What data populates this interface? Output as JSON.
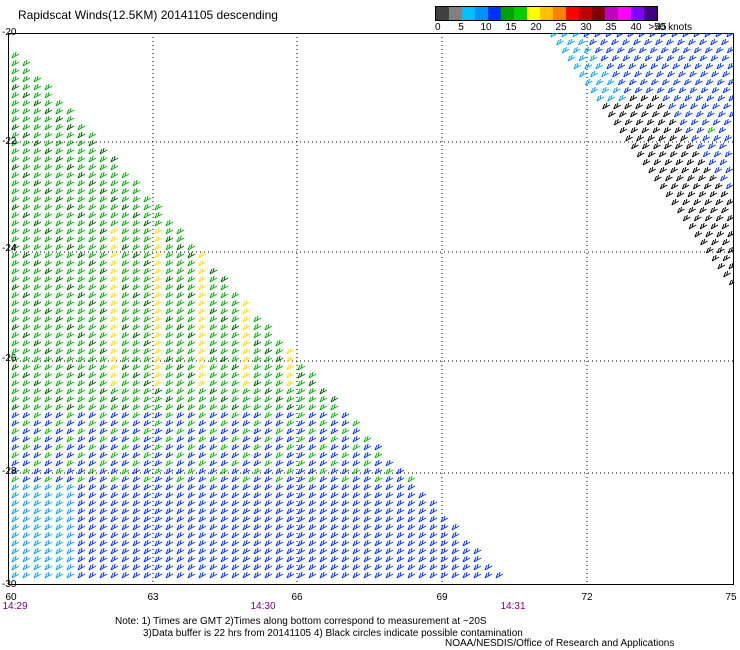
{
  "title": "Rapidscat Winds(12.5KM) 20141105 descending",
  "colorbar": {
    "colors": [
      "#404040",
      "#808080",
      "#00c0ff",
      "#0090ff",
      "#0030ff",
      "#00a000",
      "#00d000",
      "#ffff00",
      "#ffc000",
      "#ff8000",
      "#ff0000",
      "#c00000",
      "#800000",
      "#c000c0",
      "#ff00ff",
      "#8000ff",
      "#400080"
    ],
    "labels": [
      "0",
      "5",
      "10",
      "15",
      "20",
      "25",
      "30",
      "35",
      "40",
      "45",
      ">50 knots"
    ]
  },
  "axes": {
    "y_ticks": [
      "-20",
      "-22",
      "-24",
      "-26",
      "-28",
      "-30"
    ],
    "x_ticks": [
      "60",
      "63",
      "66",
      "69",
      "72",
      "75"
    ],
    "time_ticks": [
      "14:29",
      "14:30",
      "14:31"
    ]
  },
  "notes": {
    "line1": "Note: 1) Times are GMT 2)Times along bottom correspond to measurement at ~20S",
    "line2": "3)Data buffer is 22 hrs from 20141105 4) Black circles indicate possible contamination",
    "credit": "NOAA/NESDIS/Office of Research and Applications"
  }
}
